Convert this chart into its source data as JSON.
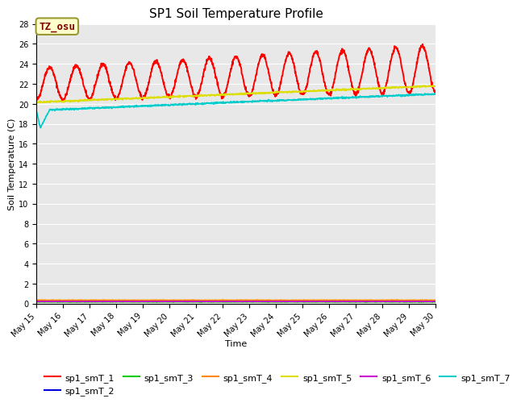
{
  "title": "SP1 Soil Temperature Profile",
  "xlabel": "Time",
  "ylabel": "Soil Temperature (C)",
  "annotation": "TZ_osu",
  "annotation_color": "#800000",
  "annotation_bg": "#ffffcc",
  "annotation_border": "#999933",
  "plot_bg": "#e8e8e8",
  "ylim": [
    0,
    28
  ],
  "yticks": [
    0,
    2,
    4,
    6,
    8,
    10,
    12,
    14,
    16,
    18,
    20,
    22,
    24,
    26,
    28
  ],
  "x_start_day": 15,
  "x_end_day": 30,
  "series_order": [
    "sp1_smT_1",
    "sp1_smT_2",
    "sp1_smT_3",
    "sp1_smT_4",
    "sp1_smT_5",
    "sp1_smT_6",
    "sp1_smT_7"
  ],
  "series_colors": {
    "sp1_smT_1": "#ff0000",
    "sp1_smT_2": "#0000dd",
    "sp1_smT_3": "#00cc00",
    "sp1_smT_4": "#ff8800",
    "sp1_smT_5": "#dddd00",
    "sp1_smT_6": "#cc00cc",
    "sp1_smT_7": "#00cccc"
  },
  "xtick_labels": [
    "May 15",
    "May 16",
    "May 17",
    "May 18",
    "May 19",
    "May 20",
    "May 21",
    "May 22",
    "May 23",
    "May 24",
    "May 25",
    "May 26",
    "May 27",
    "May 28",
    "May 29",
    "May 30"
  ],
  "xtick_positions": [
    15,
    16,
    17,
    18,
    19,
    20,
    21,
    22,
    23,
    24,
    25,
    26,
    27,
    28,
    29,
    30
  ],
  "title_fontsize": 11,
  "axis_label_fontsize": 8,
  "tick_fontsize": 7,
  "legend_fontsize": 8
}
